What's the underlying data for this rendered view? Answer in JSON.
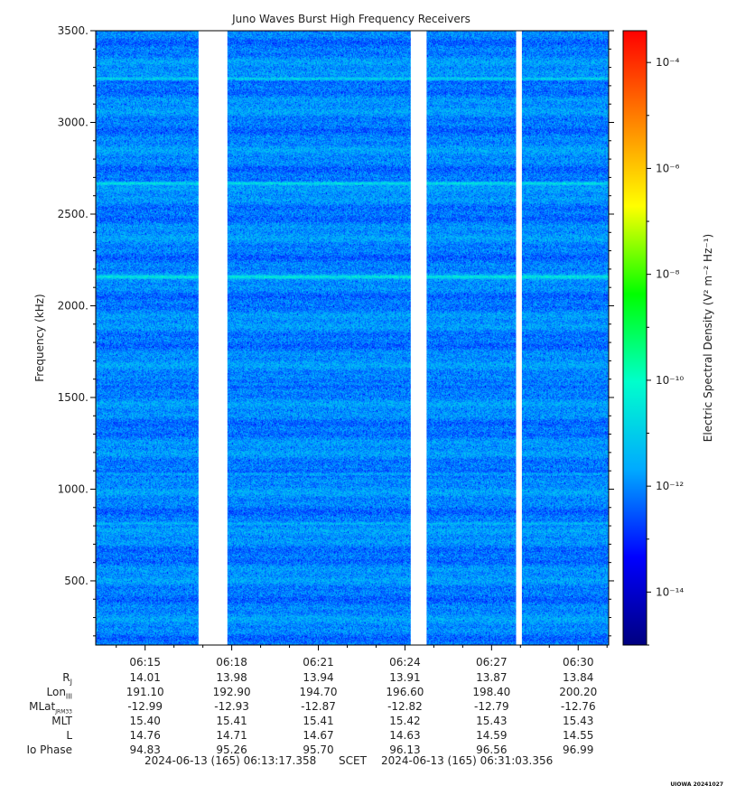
{
  "chart_data": {
    "type": "heatmap",
    "title": "Juno Waves Burst High Frequency Receivers",
    "ylabel": "Frequency (kHz)",
    "y_tick_labels": [
      "500.",
      "1000.",
      "1500.",
      "2000.",
      "2500.",
      "3000.",
      "3500."
    ],
    "y_tick_values": [
      500,
      1000,
      1500,
      2000,
      2500,
      3000,
      3500
    ],
    "ylim": [
      150,
      3500
    ],
    "x_tick_labels": [
      "06:15",
      "06:18",
      "06:21",
      "06:24",
      "06:27",
      "06:30"
    ],
    "x_tick_minutes": [
      15,
      18,
      21,
      24,
      27,
      30
    ],
    "xlim_minutes": [
      13.289,
      31.056
    ],
    "data_gaps_minutes": [
      [
        16.85,
        17.85
      ],
      [
        24.2,
        24.75
      ],
      [
        27.85,
        28.05
      ]
    ],
    "emission_lines_khz": [
      {
        "freq": 3240,
        "intensity": 0.9
      },
      {
        "freq": 2670,
        "intensity": 1.0
      },
      {
        "freq": 2160,
        "intensity": 0.75
      },
      {
        "freq": 1575,
        "intensity": 0.3
      },
      {
        "freq": 1085,
        "intensity": 0.5
      },
      {
        "freq": 815,
        "intensity": 0.5
      }
    ],
    "colorbar": {
      "label": "Electric Spectral Density (V² m⁻² Hz⁻¹)",
      "scale": "log",
      "range_exponent": [
        -15,
        -3.4
      ],
      "tick_exponents": [
        -14,
        -12,
        -10,
        -8,
        -6,
        -4
      ],
      "tick_labels": [
        "10⁻¹⁴",
        "10⁻¹²",
        "10⁻¹⁰",
        "10⁻⁸",
        "10⁻⁶",
        "10⁻⁴"
      ],
      "colors": [
        "#000080",
        "#0000ff",
        "#00aaff",
        "#00ffcc",
        "#00ff00",
        "#ffff00",
        "#ff8000",
        "#ff0000"
      ]
    },
    "background_level_exponent": -12
  },
  "ephemeris": {
    "labels": [
      "R",
      "Lon",
      "MLat",
      "MLT",
      "L",
      "Io Phase"
    ],
    "label_subscripts": [
      "J",
      "III",
      "JRM33",
      "",
      "",
      ""
    ],
    "columns": [
      [
        "14.01",
        "191.10",
        "-12.99",
        "15.40",
        "14.76",
        "94.83"
      ],
      [
        "13.98",
        "192.90",
        "-12.93",
        "15.41",
        "14.71",
        "95.26"
      ],
      [
        "13.94",
        "194.70",
        "-12.87",
        "15.41",
        "14.67",
        "95.70"
      ],
      [
        "13.91",
        "196.60",
        "-12.82",
        "15.42",
        "14.63",
        "96.13"
      ],
      [
        "13.87",
        "198.40",
        "-12.79",
        "15.43",
        "14.59",
        "96.56"
      ],
      [
        "13.84",
        "200.20",
        "-12.76",
        "15.43",
        "14.55",
        "96.99"
      ]
    ]
  },
  "footer": {
    "start": "2024-06-13 (165) 06:13:17.358",
    "middle": "SCET",
    "end": "2024-06-13 (165) 06:31:03.356"
  },
  "stamp": "UIOWA 20241027"
}
